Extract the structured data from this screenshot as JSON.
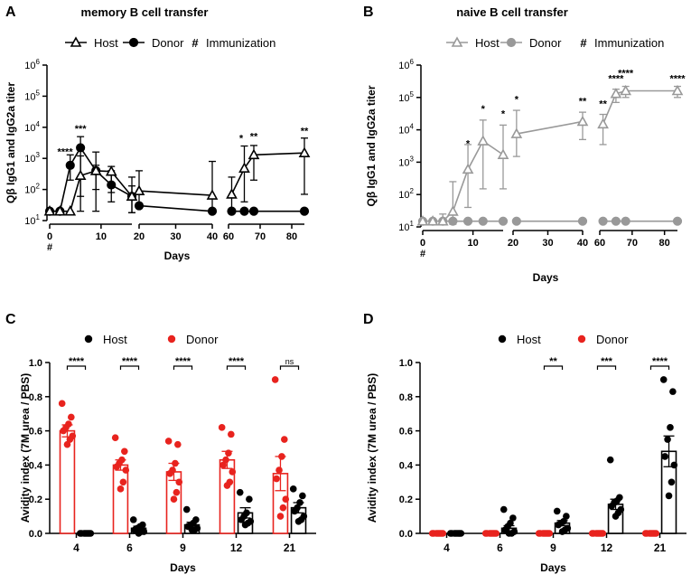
{
  "panel_letters": [
    "A",
    "B",
    "C",
    "D"
  ],
  "chart_data": [
    {
      "panel": "A",
      "type": "line",
      "title": "memory B cell transfer",
      "xlabel": "Days",
      "ylabel": "Qβ IgG1 and IgG2a titer",
      "yscale": "log",
      "ylim": [
        10,
        1000000
      ],
      "y_ticks": [
        {
          "v": 10,
          "e": "1"
        },
        {
          "v": 100,
          "e": "2"
        },
        {
          "v": 1000,
          "e": "3"
        },
        {
          "v": 10000,
          "e": "4"
        },
        {
          "v": 100000,
          "e": "5"
        },
        {
          "v": 1000000,
          "e": "6"
        }
      ],
      "y_tick_base": "10",
      "x_segments": [
        [
          0,
          16
        ],
        [
          20,
          40
        ],
        [
          60,
          84
        ]
      ],
      "x_ticks": [
        0,
        10,
        20,
        30,
        40,
        60,
        70,
        80
      ],
      "x_tick_labels": [
        "0",
        "10",
        "20",
        "30",
        "40",
        "60",
        "70",
        "80"
      ],
      "immunization_mark": "#",
      "legend": [
        {
          "name": "Host",
          "marker": "triangle-open"
        },
        {
          "name": "Donor",
          "marker": "circle-filled"
        },
        {
          "name": "Immunization",
          "marker": "#"
        }
      ],
      "color": "#000000",
      "series": [
        {
          "name": "Host",
          "marker": "triangle-open",
          "segments": [
            [
              {
                "x": 0,
                "y": 20
              },
              {
                "x": 2,
                "y": 20
              },
              {
                "x": 4,
                "y": 20
              },
              {
                "x": 6,
                "y": 280
              },
              {
                "x": 9,
                "y": 400
              },
              {
                "x": 12,
                "y": 380
              },
              {
                "x": 16,
                "y": 60
              }
            ],
            [
              {
                "x": 20,
                "y": 90
              },
              {
                "x": 40,
                "y": 65
              }
            ],
            [
              {
                "x": 61,
                "y": 70
              },
              {
                "x": 65,
                "y": 480
              },
              {
                "x": 68,
                "y": 1300
              },
              {
                "x": 84,
                "y": 1500
              }
            ]
          ],
          "errors": [
            [
              null,
              null,
              null,
              [
                60,
                1200
              ],
              [
                100,
                1600
              ],
              [
                80,
                550
              ],
              [
                18,
                250
              ]
            ],
            [
              [
                25,
                400
              ],
              [
                18,
                800
              ]
            ],
            [
              [
                20,
                250
              ],
              [
                40,
                2500
              ],
              [
                200,
                2600
              ],
              [
                70,
                4500
              ]
            ]
          ]
        },
        {
          "name": "Donor",
          "marker": "circle-filled",
          "segments": [
            [
              {
                "x": 0,
                "y": 20
              },
              {
                "x": 2,
                "y": 20
              },
              {
                "x": 4,
                "y": 600
              },
              {
                "x": 6,
                "y": 2200
              },
              {
                "x": 9,
                "y": 400
              },
              {
                "x": 12,
                "y": 140
              },
              {
                "x": 16,
                "y": 60
              }
            ],
            [
              {
                "x": 20,
                "y": 30
              },
              {
                "x": 40,
                "y": 20
              }
            ],
            [
              {
                "x": 61,
                "y": 20
              },
              {
                "x": 65,
                "y": 20
              },
              {
                "x": 68,
                "y": 20
              },
              {
                "x": 84,
                "y": 20
              }
            ]
          ],
          "errors": [
            [
              null,
              null,
              [
                200,
                1300
              ],
              [
                20,
                5000
              ],
              [
                20,
                600
              ],
              [
                40,
                400
              ],
              [
                18,
                130
              ]
            ],
            [
              null,
              null
            ],
            [
              null,
              null,
              null,
              null
            ]
          ]
        }
      ],
      "annotations": [
        {
          "x": 3,
          "y": 1300,
          "text": "****"
        },
        {
          "x": 6,
          "y": 7000,
          "text": "***"
        },
        {
          "x": 64,
          "y": 3500,
          "text": "*"
        },
        {
          "x": 68,
          "y": 4000,
          "text": "**"
        },
        {
          "x": 84,
          "y": 6000,
          "text": "**"
        }
      ]
    },
    {
      "panel": "B",
      "type": "line",
      "title": "naive B cell transfer",
      "xlabel": "Days",
      "ylabel": "Qβ IgG1 and IgG2a titer",
      "yscale": "log",
      "ylim": [
        10,
        1000000
      ],
      "y_ticks": [
        {
          "v": 10,
          "e": "1"
        },
        {
          "v": 100,
          "e": "2"
        },
        {
          "v": 1000,
          "e": "3"
        },
        {
          "v": 10000,
          "e": "4"
        },
        {
          "v": 100000,
          "e": "5"
        },
        {
          "v": 1000000,
          "e": "6"
        }
      ],
      "y_tick_base": "10",
      "x_segments": [
        [
          0,
          16
        ],
        [
          20,
          40
        ],
        [
          60,
          84
        ]
      ],
      "x_ticks": [
        0,
        10,
        20,
        30,
        40,
        60,
        70,
        80
      ],
      "x_tick_labels": [
        "0",
        "10",
        "20",
        "30",
        "40",
        "60",
        "70",
        "80"
      ],
      "immunization_mark": "#",
      "legend": [
        {
          "name": "Host",
          "marker": "triangle-open"
        },
        {
          "name": "Donor",
          "marker": "circle-filled"
        },
        {
          "name": "Immunization",
          "marker": "#"
        }
      ],
      "color": "#999999",
      "series": [
        {
          "name": "Host",
          "marker": "triangle-open",
          "segments": [
            [
              {
                "x": 0,
                "y": 15
              },
              {
                "x": 2,
                "y": 15
              },
              {
                "x": 4,
                "y": 15
              },
              {
                "x": 6,
                "y": 30
              },
              {
                "x": 9,
                "y": 600
              },
              {
                "x": 12,
                "y": 4500
              },
              {
                "x": 16,
                "y": 1700
              }
            ],
            [
              {
                "x": 21,
                "y": 7500
              },
              {
                "x": 40,
                "y": 18000
              }
            ],
            [
              {
                "x": 61,
                "y": 15000
              },
              {
                "x": 65,
                "y": 130000
              },
              {
                "x": 68,
                "y": 160000
              },
              {
                "x": 84,
                "y": 160000
              }
            ]
          ],
          "errors": [
            [
              null,
              null,
              [
                12,
                25
              ],
              [
                12,
                250
              ],
              [
                40,
                3500
              ],
              [
                150,
                20000
              ],
              [
                150,
                14000
              ]
            ],
            [
              [
                1500,
                40000
              ],
              [
                5000,
                35000
              ]
            ],
            [
              [
                3500,
                30000
              ],
              [
                70000,
                180000
              ],
              [
                100000,
                220000
              ],
              [
                100000,
                220000
              ]
            ]
          ]
        },
        {
          "name": "Donor",
          "marker": "circle-filled",
          "segments": [
            [
              {
                "x": 0,
                "y": 15
              },
              {
                "x": 2,
                "y": 15
              },
              {
                "x": 4,
                "y": 15
              },
              {
                "x": 6,
                "y": 15
              },
              {
                "x": 9,
                "y": 15
              },
              {
                "x": 12,
                "y": 15
              },
              {
                "x": 16,
                "y": 15
              }
            ],
            [
              {
                "x": 21,
                "y": 15
              },
              {
                "x": 40,
                "y": 15
              }
            ],
            [
              {
                "x": 61,
                "y": 15
              },
              {
                "x": 65,
                "y": 15
              },
              {
                "x": 68,
                "y": 15
              },
              {
                "x": 84,
                "y": 15
              }
            ]
          ],
          "errors": [
            [
              null,
              null,
              null,
              null,
              null,
              null,
              null
            ],
            [
              null,
              null
            ],
            [
              null,
              null,
              null,
              null
            ]
          ]
        }
      ],
      "annotations": [
        {
          "x": 9,
          "y": 3000,
          "text": "*"
        },
        {
          "x": 12,
          "y": 35000,
          "text": "*"
        },
        {
          "x": 16,
          "y": 25000,
          "text": "*"
        },
        {
          "x": 21,
          "y": 70000,
          "text": "*"
        },
        {
          "x": 40,
          "y": 60000,
          "text": "**"
        },
        {
          "x": 61,
          "y": 50000,
          "text": "**"
        },
        {
          "x": 65,
          "y": 300000,
          "text": "****"
        },
        {
          "x": 68,
          "y": 450000,
          "text": "****"
        },
        {
          "x": 84,
          "y": 300000,
          "text": "****"
        }
      ]
    },
    {
      "panel": "C",
      "type": "bar",
      "xlabel": "Days",
      "ylabel": "Avidity index (7M urea / PBS)",
      "ylim": [
        0,
        1.0
      ],
      "y_ticks": [
        0.0,
        0.2,
        0.4,
        0.6,
        0.8,
        1.0
      ],
      "y_tick_labels": [
        "0.0",
        "0.2",
        "0.4",
        "0.6",
        "0.8",
        "1.0"
      ],
      "categories": [
        "4",
        "6",
        "9",
        "12",
        "21"
      ],
      "legend": [
        {
          "name": "Host",
          "color": "#000000"
        },
        {
          "name": "Donor",
          "color": "#e8231e"
        }
      ],
      "series": [
        {
          "name": "Donor",
          "color": "#e8231e",
          "order": 0,
          "means": [
            0.6,
            0.4,
            0.36,
            0.43,
            0.35
          ],
          "sem": [
            0.035,
            0.03,
            0.05,
            0.05,
            0.1
          ],
          "points": [
            [
              0.76,
              0.68,
              0.64,
              0.62,
              0.6,
              0.57,
              0.55,
              0.52
            ],
            [
              0.56,
              0.48,
              0.43,
              0.41,
              0.39,
              0.37,
              0.3,
              0.26
            ],
            [
              0.54,
              0.52,
              0.41,
              0.37,
              0.35,
              0.3,
              0.24,
              0.2
            ],
            [
              0.62,
              0.58,
              0.47,
              0.43,
              0.4,
              0.36,
              0.3,
              0.28
            ],
            [
              0.9,
              0.55,
              0.45,
              0.37,
              0.32,
              0.2,
              0.15,
              0.1
            ]
          ]
        },
        {
          "name": "Host",
          "color": "#000000",
          "order": 1,
          "means": [
            0.0,
            0.03,
            0.05,
            0.12,
            0.15
          ],
          "sem": [
            0.003,
            0.012,
            0.015,
            0.03,
            0.03
          ],
          "points": [
            [
              0.0,
              0.0,
              0.0,
              0.0,
              0.0,
              0.0,
              0.0,
              0.0
            ],
            [
              0.08,
              0.05,
              0.04,
              0.03,
              0.02,
              0.01,
              0.01,
              0.0
            ],
            [
              0.14,
              0.08,
              0.06,
              0.05,
              0.04,
              0.03,
              0.02,
              0.02
            ],
            [
              0.24,
              0.2,
              0.12,
              0.1,
              0.08,
              0.07,
              0.06,
              0.05
            ],
            [
              0.26,
              0.22,
              0.18,
              0.15,
              0.13,
              0.1,
              0.08,
              0.07
            ]
          ]
        }
      ],
      "significance": [
        {
          "category": "4",
          "text": "****"
        },
        {
          "category": "6",
          "text": "****"
        },
        {
          "category": "9",
          "text": "****"
        },
        {
          "category": "12",
          "text": "****"
        },
        {
          "category": "21",
          "text": "ns"
        }
      ]
    },
    {
      "panel": "D",
      "type": "bar",
      "xlabel": "Days",
      "ylabel": "Avidity index (7M urea / PBS)",
      "ylim": [
        0,
        1.0
      ],
      "y_ticks": [
        0.0,
        0.2,
        0.4,
        0.6,
        0.8,
        1.0
      ],
      "y_tick_labels": [
        "0.0",
        "0.2",
        "0.4",
        "0.6",
        "0.8",
        "1.0"
      ],
      "categories": [
        "4",
        "6",
        "9",
        "12",
        "21"
      ],
      "legend": [
        {
          "name": "Host",
          "color": "#000000"
        },
        {
          "name": "Donor",
          "color": "#e8231e"
        }
      ],
      "series": [
        {
          "name": "Donor",
          "color": "#e8231e",
          "order": 0,
          "means": [
            0.0,
            0.0,
            0.0,
            0.0,
            0.0
          ],
          "sem": [
            0.0,
            0.0,
            0.0,
            0.0,
            0.0
          ],
          "points": [
            [
              0.0,
              0.0,
              0.0,
              0.0,
              0.0,
              0.0,
              0.0,
              0.0
            ],
            [
              0.0,
              0.0,
              0.0,
              0.0,
              0.0,
              0.0,
              0.0,
              0.0
            ],
            [
              0.0,
              0.0,
              0.0,
              0.0,
              0.0,
              0.0,
              0.0,
              0.0
            ],
            [
              0.0,
              0.0,
              0.0,
              0.0,
              0.0,
              0.0,
              0.0,
              0.0
            ],
            [
              0.0,
              0.0,
              0.0,
              0.0,
              0.0,
              0.0,
              0.0,
              0.0
            ]
          ]
        },
        {
          "name": "Host",
          "color": "#000000",
          "order": 1,
          "means": [
            0.0,
            0.03,
            0.06,
            0.17,
            0.48
          ],
          "sem": [
            0.002,
            0.015,
            0.015,
            0.03,
            0.09
          ],
          "points": [
            [
              0.0,
              0.0,
              0.0,
              0.0,
              0.0,
              0.0,
              0.0,
              0.0
            ],
            [
              0.14,
              0.09,
              0.06,
              0.04,
              0.02,
              0.01,
              0.0,
              0.0
            ],
            [
              0.13,
              0.1,
              0.07,
              0.06,
              0.05,
              0.03,
              0.02,
              0.01
            ],
            [
              0.43,
              0.21,
              0.19,
              0.18,
              0.16,
              0.14,
              0.12,
              0.1
            ],
            [
              0.9,
              0.83,
              0.62,
              0.55,
              0.45,
              0.4,
              0.3,
              0.22
            ]
          ]
        }
      ],
      "significance": [
        {
          "category": "9",
          "text": "**"
        },
        {
          "category": "12",
          "text": "***"
        },
        {
          "category": "21",
          "text": "****"
        }
      ]
    }
  ]
}
